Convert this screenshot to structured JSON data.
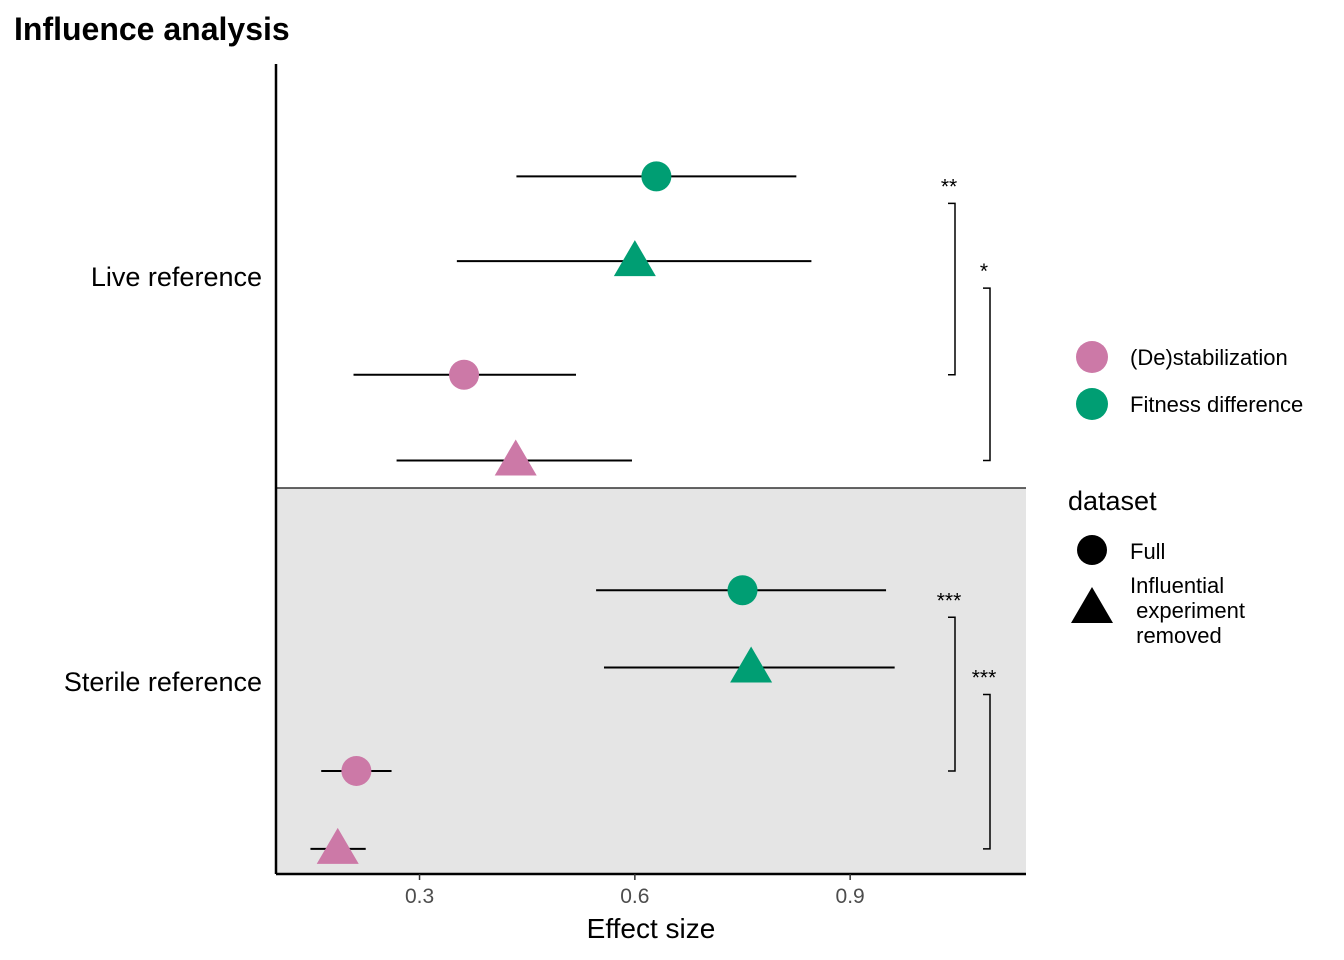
{
  "chart_data": {
    "type": "scatter",
    "title": "Influence analysis",
    "xlabel": "Effect size",
    "ylabel": "",
    "xlim": [
      0.1,
      1.145
    ],
    "xticks": [
      {
        "value": 0.3,
        "label": "0.3"
      },
      {
        "value": 0.6,
        "label": "0.6"
      },
      {
        "value": 0.9,
        "label": "0.9"
      }
    ],
    "grid": false,
    "categories": [
      "Live reference",
      "Sterile reference"
    ],
    "shaded_category": "Sterile reference",
    "colors": {
      "(De)stabilization": "#cc79a7",
      "Fitness difference": "#009e73",
      "shade": "#e5e5e5"
    },
    "points": [
      {
        "category": "Live reference",
        "type": "Fitness difference",
        "dataset": "Full",
        "estimate": 0.63,
        "lower": 0.435,
        "upper": 0.825
      },
      {
        "category": "Live reference",
        "type": "Fitness difference",
        "dataset": "Influential experiment removed",
        "estimate": 0.6,
        "lower": 0.352,
        "upper": 0.846
      },
      {
        "category": "Live reference",
        "type": "(De)stabilization",
        "dataset": "Full",
        "estimate": 0.362,
        "lower": 0.208,
        "upper": 0.518
      },
      {
        "category": "Live reference",
        "type": "(De)stabilization",
        "dataset": "Influential experiment removed",
        "estimate": 0.434,
        "lower": 0.268,
        "upper": 0.596
      },
      {
        "category": "Sterile reference",
        "type": "Fitness difference",
        "dataset": "Full",
        "estimate": 0.75,
        "lower": 0.546,
        "upper": 0.95
      },
      {
        "category": "Sterile reference",
        "type": "Fitness difference",
        "dataset": "Influential experiment removed",
        "estimate": 0.762,
        "lower": 0.557,
        "upper": 0.962
      },
      {
        "category": "Sterile reference",
        "type": "(De)stabilization",
        "dataset": "Full",
        "estimate": 0.212,
        "lower": 0.163,
        "upper": 0.261
      },
      {
        "category": "Sterile reference",
        "type": "(De)stabilization",
        "dataset": "Influential experiment removed",
        "estimate": 0.186,
        "lower": 0.148,
        "upper": 0.225
      }
    ],
    "significance": [
      {
        "category": "Live reference",
        "dataset": "Full",
        "label": "**"
      },
      {
        "category": "Live reference",
        "dataset": "Influential experiment removed",
        "label": "*"
      },
      {
        "category": "Sterile reference",
        "dataset": "Full",
        "label": "***"
      },
      {
        "category": "Sterile reference",
        "dataset": "Influential experiment removed",
        "label": "***"
      }
    ],
    "legend": {
      "placement": "right",
      "color_entries": [
        "(De)stabilization",
        "Fitness difference"
      ],
      "shape_title": "dataset",
      "shape_entries": [
        {
          "shape": "circle",
          "lines": [
            "Full"
          ]
        },
        {
          "shape": "triangle",
          "lines": [
            "Influential",
            " experiment",
            " removed"
          ]
        }
      ]
    }
  }
}
